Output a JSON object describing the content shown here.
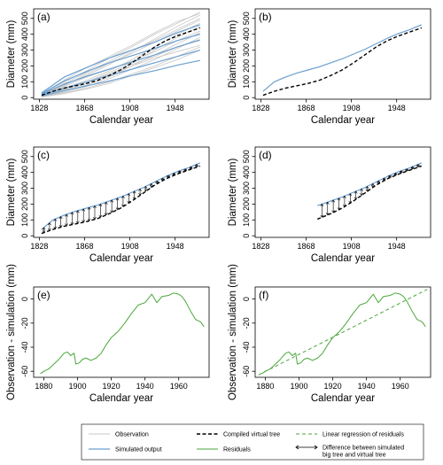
{
  "colors": {
    "observation": "#c8c8c8",
    "simulated": "#6a9fd1",
    "virtual_tree": "#000000",
    "residuals": "#4aa63a",
    "regression": "#4aa63a"
  },
  "legend": {
    "items": [
      {
        "key": "observation",
        "label": "Observation",
        "style": "gray-line"
      },
      {
        "key": "simulated",
        "label": "Simulated output",
        "style": "blue-line"
      },
      {
        "key": "virtual",
        "label": "Compiled virtual tree",
        "style": "black-dash"
      },
      {
        "key": "residuals",
        "label": "Residuals",
        "style": "green-line"
      },
      {
        "key": "regression",
        "label": "Linear regression of residuals",
        "style": "green-dash"
      },
      {
        "key": "difference",
        "label": "Difference between simulated",
        "label2": "big tree and virtual tree",
        "style": "double-arrow"
      }
    ]
  },
  "chart_data": [
    {
      "panel": "(a)",
      "type": "line",
      "xlabel": "Calendar year",
      "ylabel": "Diameter (mm)",
      "xlim": [
        1823,
        1978
      ],
      "ylim": [
        -10,
        560
      ],
      "xticks": [
        1828,
        1868,
        1908,
        1948
      ],
      "yticks": [
        0,
        100,
        200,
        300,
        400,
        500
      ],
      "series": [
        {
          "kind": "observation",
          "x": [
            1830,
            1850,
            1870,
            1890,
            1910,
            1930,
            1950,
            1970
          ],
          "y": [
            20,
            100,
            170,
            250,
            320,
            400,
            470,
            540
          ]
        },
        {
          "kind": "observation",
          "x": [
            1830,
            1850,
            1870,
            1890,
            1910,
            1930,
            1950,
            1970
          ],
          "y": [
            15,
            80,
            140,
            210,
            290,
            370,
            450,
            520
          ]
        },
        {
          "kind": "observation",
          "x": [
            1830,
            1850,
            1870,
            1890,
            1910,
            1930,
            1950,
            1970
          ],
          "y": [
            10,
            60,
            110,
            170,
            240,
            320,
            400,
            470
          ]
        },
        {
          "kind": "observation",
          "x": [
            1830,
            1850,
            1870,
            1890,
            1910,
            1930,
            1950,
            1970
          ],
          "y": [
            8,
            40,
            80,
            130,
            200,
            270,
            340,
            410
          ]
        },
        {
          "kind": "observation",
          "x": [
            1830,
            1850,
            1870,
            1890,
            1910,
            1930,
            1950,
            1970
          ],
          "y": [
            12,
            70,
            130,
            180,
            230,
            290,
            360,
            420
          ]
        },
        {
          "kind": "observation",
          "x": [
            1830,
            1850,
            1870,
            1890,
            1910,
            1930,
            1950,
            1970
          ],
          "y": [
            5,
            30,
            60,
            100,
            150,
            200,
            260,
            320
          ]
        },
        {
          "kind": "observation",
          "x": [
            1830,
            1850,
            1870,
            1890,
            1910,
            1930,
            1950,
            1970
          ],
          "y": [
            18,
            90,
            160,
            230,
            300,
            360,
            430,
            500
          ]
        },
        {
          "kind": "observation",
          "x": [
            1830,
            1850,
            1870,
            1890,
            1910,
            1930,
            1950,
            1970
          ],
          "y": [
            6,
            35,
            70,
            120,
            180,
            240,
            310,
            380
          ]
        },
        {
          "kind": "observation",
          "x": [
            1830,
            1850,
            1870,
            1890,
            1910,
            1930,
            1950,
            1970
          ],
          "y": [
            10,
            50,
            100,
            160,
            220,
            300,
            380,
            450
          ]
        },
        {
          "kind": "observation",
          "x": [
            1830,
            1850,
            1870,
            1890,
            1910,
            1930,
            1950,
            1970
          ],
          "y": [
            4,
            25,
            55,
            90,
            140,
            190,
            240,
            300
          ]
        },
        {
          "kind": "observation",
          "x": [
            1830,
            1850,
            1870,
            1890,
            1910,
            1930,
            1950,
            1970
          ],
          "y": [
            14,
            75,
            150,
            220,
            280,
            350,
            420,
            490
          ]
        },
        {
          "kind": "observation",
          "x": [
            1830,
            1850,
            1870,
            1890,
            1910,
            1930,
            1950,
            1970
          ],
          "y": [
            7,
            45,
            90,
            150,
            210,
            260,
            320,
            360
          ]
        },
        {
          "kind": "observation",
          "x": [
            1830,
            1850,
            1870,
            1890,
            1910,
            1930,
            1950,
            1970
          ],
          "y": [
            20,
            110,
            190,
            260,
            330,
            410,
            480,
            530
          ]
        },
        {
          "kind": "observation",
          "x": [
            1830,
            1850,
            1870,
            1890,
            1910,
            1930,
            1950,
            1970
          ],
          "y": [
            9,
            55,
            100,
            150,
            200,
            250,
            290,
            330
          ]
        },
        {
          "kind": "simulated",
          "x": [
            1830,
            1850,
            1870,
            1890,
            1910,
            1930,
            1950,
            1970
          ],
          "y": [
            30,
            130,
            190,
            250,
            300,
            350,
            410,
            460
          ]
        },
        {
          "kind": "simulated",
          "x": [
            1830,
            1850,
            1870,
            1890,
            1910,
            1930,
            1950,
            1970
          ],
          "y": [
            25,
            105,
            165,
            220,
            265,
            310,
            360,
            400
          ]
        },
        {
          "kind": "simulated",
          "x": [
            1830,
            1850,
            1870,
            1890,
            1910,
            1930,
            1950,
            1970
          ],
          "y": [
            20,
            85,
            135,
            180,
            225,
            270,
            320,
            365
          ]
        },
        {
          "kind": "simulated",
          "x": [
            1830,
            1850,
            1870,
            1890,
            1910,
            1930,
            1950,
            1970
          ],
          "y": [
            15,
            60,
            100,
            140,
            180,
            220,
            260,
            300
          ]
        },
        {
          "kind": "simulated",
          "x": [
            1830,
            1850,
            1870,
            1890,
            1910,
            1930,
            1950,
            1970
          ],
          "y": [
            10,
            45,
            75,
            105,
            140,
            170,
            205,
            235
          ]
        },
        {
          "kind": "virtual",
          "x": [
            1830,
            1840,
            1850,
            1860,
            1870,
            1880,
            1890,
            1900,
            1910,
            1920,
            1930,
            1940,
            1950,
            1960,
            1970
          ],
          "y": [
            15,
            40,
            60,
            75,
            90,
            110,
            140,
            175,
            220,
            270,
            320,
            360,
            390,
            415,
            440
          ]
        }
      ]
    },
    {
      "panel": "(b)",
      "type": "line",
      "xlabel": "Calendar year",
      "ylabel": "Diameter (mm)",
      "xlim": [
        1823,
        1978
      ],
      "ylim": [
        -10,
        560
      ],
      "xticks": [
        1828,
        1868,
        1908,
        1948
      ],
      "yticks": [
        0,
        100,
        200,
        300,
        400,
        500
      ],
      "series": [
        {
          "kind": "simulated",
          "x": [
            1830,
            1840,
            1850,
            1860,
            1870,
            1880,
            1890,
            1900,
            1910,
            1920,
            1930,
            1940,
            1950,
            1960,
            1970
          ],
          "y": [
            40,
            100,
            130,
            155,
            175,
            195,
            220,
            245,
            275,
            305,
            340,
            375,
            405,
            430,
            460
          ]
        },
        {
          "kind": "virtual",
          "x": [
            1830,
            1840,
            1850,
            1860,
            1870,
            1880,
            1890,
            1900,
            1910,
            1920,
            1930,
            1940,
            1950,
            1960,
            1970
          ],
          "y": [
            15,
            40,
            60,
            75,
            90,
            110,
            140,
            175,
            220,
            270,
            320,
            360,
            390,
            415,
            440
          ]
        }
      ]
    },
    {
      "panel": "(c)",
      "type": "line",
      "xlabel": "Calendar year",
      "ylabel": "Diameter (mm)",
      "xlim": [
        1823,
        1978
      ],
      "ylim": [
        -10,
        560
      ],
      "xticks": [
        1828,
        1868,
        1908,
        1948
      ],
      "yticks": [
        0,
        100,
        200,
        300,
        400,
        500
      ],
      "arrow_x": [
        1832,
        1837,
        1842,
        1847,
        1852,
        1857,
        1862,
        1867,
        1872,
        1877,
        1882,
        1887,
        1892,
        1897,
        1902,
        1907,
        1912,
        1917,
        1922,
        1927,
        1932,
        1937,
        1942,
        1947,
        1952,
        1957,
        1962,
        1967
      ],
      "series": [
        {
          "kind": "simulated",
          "x": [
            1830,
            1840,
            1850,
            1860,
            1870,
            1880,
            1890,
            1900,
            1910,
            1920,
            1930,
            1940,
            1950,
            1960,
            1970
          ],
          "y": [
            40,
            100,
            130,
            155,
            175,
            195,
            220,
            245,
            275,
            305,
            340,
            375,
            405,
            430,
            460
          ]
        },
        {
          "kind": "virtual",
          "x": [
            1830,
            1840,
            1850,
            1860,
            1870,
            1880,
            1890,
            1900,
            1910,
            1920,
            1930,
            1940,
            1950,
            1960,
            1970
          ],
          "y": [
            15,
            40,
            60,
            75,
            90,
            110,
            140,
            175,
            220,
            270,
            320,
            360,
            390,
            415,
            440
          ]
        }
      ]
    },
    {
      "panel": "(d)",
      "type": "line",
      "xlabel": "Calendar year",
      "ylabel": "Diameter (mm)",
      "xlim": [
        1823,
        1978
      ],
      "ylim": [
        -10,
        560
      ],
      "xticks": [
        1828,
        1868,
        1908,
        1948
      ],
      "yticks": [
        0,
        100,
        200,
        300,
        400,
        500
      ],
      "arrow_x": [
        1882,
        1887,
        1892,
        1897,
        1902,
        1907,
        1912,
        1917,
        1922,
        1927,
        1932,
        1937,
        1942,
        1947,
        1952,
        1957,
        1962,
        1967
      ],
      "series": [
        {
          "kind": "simulated",
          "x": [
            1878,
            1890,
            1900,
            1910,
            1920,
            1930,
            1940,
            1950,
            1960,
            1970
          ],
          "y": [
            190,
            220,
            245,
            275,
            305,
            340,
            375,
            405,
            430,
            460
          ]
        },
        {
          "kind": "virtual",
          "x": [
            1878,
            1890,
            1900,
            1910,
            1920,
            1930,
            1940,
            1950,
            1960,
            1970
          ],
          "y": [
            105,
            140,
            175,
            220,
            270,
            320,
            360,
            390,
            415,
            440
          ]
        }
      ]
    },
    {
      "panel": "(e)",
      "type": "line",
      "xlabel": "Calendar year",
      "ylabel": "Observation - simulation (mm)",
      "xlim": [
        1874,
        1978
      ],
      "ylim": [
        -65,
        10
      ],
      "xticks": [
        1880,
        1900,
        1920,
        1940,
        1960
      ],
      "yticks": [
        -60,
        -40,
        -20,
        0
      ],
      "series": [
        {
          "kind": "residuals",
          "x": [
            1878,
            1880,
            1883,
            1886,
            1889,
            1892,
            1894,
            1896,
            1898,
            1899,
            1901,
            1903,
            1905,
            1908,
            1911,
            1914,
            1917,
            1920,
            1924,
            1928,
            1932,
            1936,
            1940,
            1944,
            1947,
            1950,
            1954,
            1957,
            1960,
            1962,
            1964,
            1967,
            1970,
            1973,
            1975
          ],
          "y": [
            -62,
            -60,
            -58,
            -54,
            -50,
            -45,
            -44,
            -47,
            -45,
            -54,
            -53,
            -50,
            -49,
            -51,
            -49,
            -45,
            -38,
            -32,
            -27,
            -20,
            -12,
            -5,
            -3,
            4,
            -3,
            2,
            3,
            5,
            4,
            2,
            -2,
            -10,
            -17,
            -19,
            -23
          ]
        }
      ]
    },
    {
      "panel": "(f)",
      "type": "line",
      "xlabel": "Calendar year",
      "ylabel": "Observation - simulation (mm)",
      "xlim": [
        1874,
        1978
      ],
      "ylim": [
        -65,
        10
      ],
      "xticks": [
        1880,
        1900,
        1920,
        1940,
        1960
      ],
      "yticks": [
        -60,
        -40,
        -20,
        0
      ],
      "series": [
        {
          "kind": "residuals",
          "x": [
            1878,
            1880,
            1883,
            1886,
            1889,
            1892,
            1894,
            1896,
            1898,
            1899,
            1901,
            1903,
            1905,
            1908,
            1911,
            1914,
            1917,
            1920,
            1924,
            1928,
            1932,
            1936,
            1940,
            1944,
            1947,
            1950,
            1954,
            1957,
            1960,
            1962,
            1964,
            1967,
            1970,
            1973,
            1975
          ],
          "y": [
            -62,
            -60,
            -58,
            -54,
            -50,
            -45,
            -44,
            -47,
            -45,
            -54,
            -53,
            -50,
            -49,
            -51,
            -49,
            -45,
            -38,
            -32,
            -27,
            -20,
            -12,
            -5,
            -3,
            4,
            -3,
            2,
            3,
            5,
            4,
            2,
            -2,
            -10,
            -17,
            -19,
            -23
          ]
        },
        {
          "kind": "regression",
          "x": [
            1876,
            1976
          ],
          "y": [
            -63,
            8
          ]
        }
      ]
    }
  ]
}
